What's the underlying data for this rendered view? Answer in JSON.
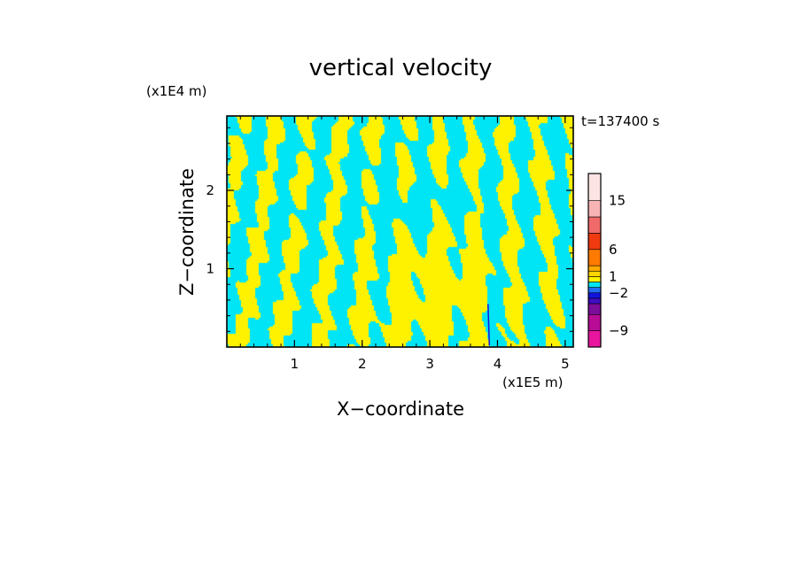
{
  "chart_data": {
    "type": "heatmap",
    "title": "vertical velocity",
    "xlabel": "X−coordinate",
    "ylabel": "Z−coordinate",
    "x_unit": "(x1E5 m)",
    "y_unit": "(x1E4 m)",
    "time_label": "t=137400 s",
    "xlim": [
      0,
      5.12
    ],
    "ylim": [
      0,
      2.95
    ],
    "x_ticks": [
      {
        "value": 1,
        "label": "1"
      },
      {
        "value": 2,
        "label": "2"
      },
      {
        "value": 3,
        "label": "3"
      },
      {
        "value": 4,
        "label": "4"
      },
      {
        "value": 5,
        "label": "5"
      }
    ],
    "y_ticks": [
      {
        "value": 1,
        "label": "1"
      },
      {
        "value": 2,
        "label": "2"
      }
    ],
    "grid": false,
    "colorbar": {
      "levels": [
        {
          "from": -12,
          "to": -9,
          "color": "#e8159f"
        },
        {
          "from": -9,
          "to": -6,
          "color": "#b80c97"
        },
        {
          "from": -6,
          "to": -4,
          "color": "#7b0d9a"
        },
        {
          "from": -4,
          "to": -3,
          "color": "#3f0cc2"
        },
        {
          "from": -3,
          "to": -2,
          "color": "#1212dd"
        },
        {
          "from": -2,
          "to": -1,
          "color": "#1f6cf5"
        },
        {
          "from": -1,
          "to": 0,
          "color": "#00e5f5"
        },
        {
          "from": 0,
          "to": 1,
          "color": "#fff200"
        },
        {
          "from": 1,
          "to": 2,
          "color": "#ffd400"
        },
        {
          "from": 2,
          "to": 3,
          "color": "#ffaa00"
        },
        {
          "from": 3,
          "to": 6,
          "color": "#ff7a00"
        },
        {
          "from": 6,
          "to": 9,
          "color": "#f03a10"
        },
        {
          "from": 9,
          "to": 12,
          "color": "#f06a6a"
        },
        {
          "from": 12,
          "to": 15,
          "color": "#f8b4b4"
        },
        {
          "from": 15,
          "to": 20,
          "color": "#fde4e4"
        }
      ],
      "tick_labels": [
        {
          "value": 15,
          "label": "15"
        },
        {
          "value": 6,
          "label": "6"
        },
        {
          "value": 1,
          "label": "1"
        },
        {
          "value": -2,
          "label": "−2"
        },
        {
          "value": -9,
          "label": "−9"
        }
      ]
    },
    "dominant_colors": {
      "positive": "#fff200",
      "negative": "#00e5f5"
    }
  }
}
